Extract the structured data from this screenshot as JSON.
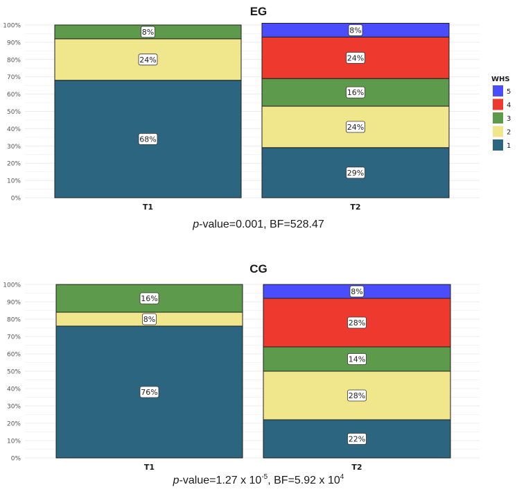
{
  "colors": {
    "1": "#2b6580",
    "2": "#f0e68c",
    "3": "#5e9a4c",
    "4": "#ee3a2e",
    "5": "#4a4dfb"
  },
  "legend": {
    "title": "WHS",
    "items": [
      "5",
      "4",
      "3",
      "2",
      "1"
    ]
  },
  "stats": [
    {
      "pre": "p",
      "main": "-value=0.001,  BF=528.47"
    },
    {
      "pre": "p",
      "a": "-value=1.27  x 10",
      "a_sup": "-5",
      "b": ", BF=5.92  x 10",
      "b_sup": "4"
    }
  ],
  "chart_data": [
    {
      "type": "bar",
      "stacked": true,
      "title": "EG",
      "categories": [
        "T1",
        "T2"
      ],
      "y_ticks": [
        "0%",
        "10%",
        "20%",
        "30%",
        "40%",
        "50%",
        "60%",
        "70%",
        "80%",
        "90%",
        "100%"
      ],
      "ylim": [
        0,
        100
      ],
      "grid": true,
      "legend_position": "right",
      "series": [
        {
          "name": "1",
          "values": [
            68,
            29
          ],
          "labels": [
            "68%",
            "29%"
          ]
        },
        {
          "name": "2",
          "values": [
            24,
            24
          ],
          "labels": [
            "24%",
            "24%"
          ]
        },
        {
          "name": "3",
          "values": [
            8,
            16
          ],
          "labels": [
            "8%",
            "16%"
          ]
        },
        {
          "name": "4",
          "values": [
            0,
            24
          ],
          "labels": [
            "",
            "24%"
          ]
        },
        {
          "name": "5",
          "values": [
            0,
            8
          ],
          "labels": [
            "",
            "8%"
          ]
        }
      ]
    },
    {
      "type": "bar",
      "stacked": true,
      "title": "CG",
      "categories": [
        "T1",
        "T2"
      ],
      "y_ticks": [
        "0%",
        "10%",
        "20%",
        "30%",
        "40%",
        "50%",
        "60%",
        "70%",
        "80%",
        "90%",
        "100%"
      ],
      "ylim": [
        0,
        100
      ],
      "grid": true,
      "series": [
        {
          "name": "1",
          "values": [
            76,
            22
          ],
          "labels": [
            "76%",
            "22%"
          ]
        },
        {
          "name": "2",
          "values": [
            8,
            28
          ],
          "labels": [
            "8%",
            "28%"
          ]
        },
        {
          "name": "3",
          "values": [
            16,
            14
          ],
          "labels": [
            "16%",
            "14%"
          ]
        },
        {
          "name": "4",
          "values": [
            0,
            28
          ],
          "labels": [
            "",
            "28%"
          ]
        },
        {
          "name": "5",
          "values": [
            0,
            8
          ],
          "labels": [
            "",
            "8%"
          ]
        }
      ]
    }
  ]
}
